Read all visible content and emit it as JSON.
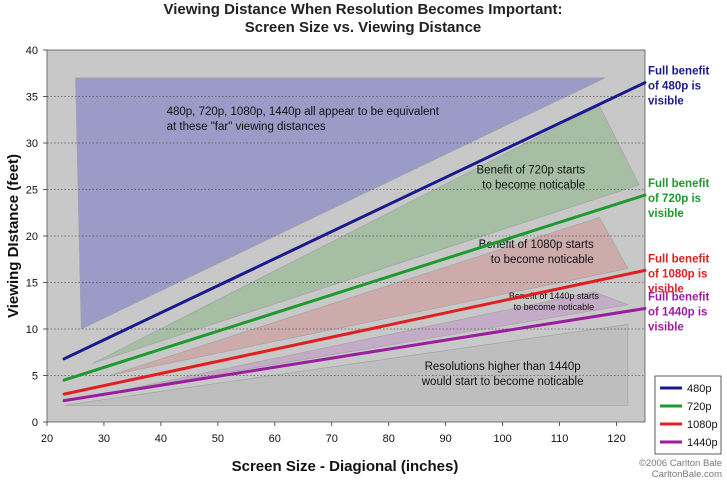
{
  "chart_data": {
    "type": "line",
    "title_lines": [
      "Viewing Distance When Resolution Becomes Important:",
      "Screen Size vs. Viewing Distance"
    ],
    "xlabel": "Screen Size - Diagional (inches)",
    "ylabel": "Viewing DIstance (feet)",
    "xlim": [
      20,
      125
    ],
    "ylim": [
      0,
      40
    ],
    "x_ticks": [
      20,
      30,
      40,
      50,
      60,
      70,
      80,
      90,
      100,
      110,
      120
    ],
    "y_ticks": [
      0,
      5,
      10,
      15,
      20,
      25,
      30,
      35,
      40
    ],
    "grid": "horizontal dotted",
    "legend_position": "bottom-right",
    "series": [
      {
        "name": "480p",
        "color": "#1a1a8c",
        "x": [
          23,
          125
        ],
        "y": [
          6.8,
          36.5
        ]
      },
      {
        "name": "720p",
        "color": "#1e9a2e",
        "x": [
          23,
          125
        ],
        "y": [
          4.5,
          24.4
        ]
      },
      {
        "name": "1080p",
        "color": "#e02020",
        "x": [
          23,
          125
        ],
        "y": [
          3.0,
          16.3
        ]
      },
      {
        "name": "1440p",
        "color": "#9a1e9e",
        "x": [
          23,
          125
        ],
        "y": [
          2.3,
          12.2
        ]
      }
    ],
    "regions": [
      {
        "name": "far",
        "color": "#7f80c8",
        "points": [
          [
            25,
            37
          ],
          [
            118,
            37
          ],
          [
            26,
            10
          ]
        ]
      },
      {
        "name": "720p",
        "color": "#90b88e",
        "points": [
          [
            28,
            6.3
          ],
          [
            117,
            34
          ],
          [
            124,
            25.5
          ]
        ]
      },
      {
        "name": "1080p",
        "color": "#d09a9a",
        "points": [
          [
            31,
            5
          ],
          [
            117,
            22
          ],
          [
            122,
            16.5
          ]
        ]
      },
      {
        "name": "1440p",
        "color": "#c29ac6",
        "points": [
          [
            33,
            3.4
          ],
          [
            116,
            14
          ],
          [
            122,
            12.6
          ]
        ]
      },
      {
        "name": "higher",
        "color": "#b8b8b8",
        "points": [
          [
            23,
            1.8
          ],
          [
            122,
            1.8
          ],
          [
            122,
            10.5
          ]
        ]
      }
    ],
    "annotations": [
      {
        "lines": [
          "480p, 720p, 1080p, 1440p all appear to be equivalent",
          "at these \"far\" viewing distances"
        ],
        "x": 41,
        "y": 33.0,
        "anchor": "start",
        "size": "normal"
      },
      {
        "lines": [
          "Benefit of 720p starts",
          "to become noticable"
        ],
        "x": 114.5,
        "y": 26.7,
        "anchor": "end",
        "size": "normal"
      },
      {
        "lines": [
          "Benefit of 1080p starts",
          "to become noticable"
        ],
        "x": 116,
        "y": 18.7,
        "anchor": "end",
        "size": "normal"
      },
      {
        "lines": [
          "Benefit of 1440p starts",
          "to become noticable"
        ],
        "x": 109,
        "y": 13.2,
        "anchor": "middle",
        "size": "small"
      },
      {
        "lines": [
          "Resolutions higher than 1440p",
          "would start to become noticable"
        ],
        "x": 100,
        "y": 5.6,
        "anchor": "middle",
        "size": "normal"
      }
    ]
  },
  "side_labels": [
    {
      "series": "480p",
      "color": "#1a1a8c",
      "lines": [
        "Full benefit",
        "of 480p is",
        "visible"
      ]
    },
    {
      "series": "720p",
      "color": "#1e9a2e",
      "lines": [
        "Full benefit",
        "of 720p is",
        "visible"
      ]
    },
    {
      "series": "1080p",
      "color": "#e02020",
      "lines": [
        "Full benefit",
        "of 1080p is",
        "visible"
      ]
    },
    {
      "series": "1440p",
      "color": "#9a1e9e",
      "lines": [
        "Full benefit",
        "of 1440p is",
        "visible"
      ]
    }
  ],
  "credit_lines": [
    "©2006 Carlton Bale",
    "CarltonBale.com"
  ]
}
